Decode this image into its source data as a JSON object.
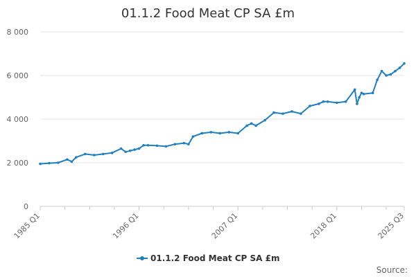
{
  "chart_data": {
    "type": "line",
    "title": "01.1.2 Food Meat CP SA £m",
    "xlabel": "",
    "ylabel": "",
    "ylim": [
      0,
      8000
    ],
    "yticks": [
      0,
      2000,
      4000,
      6000,
      8000
    ],
    "ytick_labels": [
      "0",
      "2 000",
      "4 000",
      "6 000",
      "8 000"
    ],
    "xlim": [
      1985.0,
      2025.5
    ],
    "xticks": [
      1985.0,
      1996.0,
      2007.0,
      2018.0,
      2025.5
    ],
    "xtick_labels": [
      "1985 Q1",
      "1996 Q1",
      "2007 Q1",
      "2018 Q1",
      "2025 Q3"
    ],
    "grid": true,
    "legend_position": "bottom-center",
    "series": [
      {
        "name": "01.1.2 Food Meat CP SA £m",
        "color": "#1f7fbf",
        "x": [
          1985.0,
          1986.0,
          1987.0,
          1988.0,
          1988.5,
          1989.0,
          1990.0,
          1991.0,
          1992.0,
          1993.0,
          1994.0,
          1994.5,
          1995.0,
          1995.5,
          1996.0,
          1996.5,
          1997.0,
          1998.0,
          1999.0,
          2000.0,
          2001.0,
          2001.5,
          2002.0,
          2003.0,
          2004.0,
          2005.0,
          2006.0,
          2007.0,
          2008.0,
          2008.5,
          2009.0,
          2010.0,
          2011.0,
          2012.0,
          2013.0,
          2014.0,
          2015.0,
          2016.0,
          2016.5,
          2017.0,
          2018.0,
          2019.0,
          2020.0,
          2020.25,
          2020.5,
          2020.75,
          2021.0,
          2022.0,
          2022.5,
          2023.0,
          2023.5,
          2024.0,
          2024.5,
          2025.0,
          2025.5
        ],
        "values": [
          1950,
          1980,
          2000,
          2150,
          2050,
          2250,
          2400,
          2350,
          2400,
          2450,
          2650,
          2500,
          2550,
          2600,
          2650,
          2800,
          2800,
          2780,
          2750,
          2850,
          2900,
          2850,
          3200,
          3350,
          3400,
          3350,
          3400,
          3350,
          3700,
          3800,
          3700,
          3950,
          4300,
          4250,
          4350,
          4250,
          4600,
          4700,
          4800,
          4800,
          4750,
          4800,
          5350,
          4700,
          5000,
          5200,
          5150,
          5200,
          5800,
          6200,
          6000,
          6050,
          6200,
          6350,
          6550
        ]
      }
    ]
  },
  "legend": {
    "label": "01.1.2 Food Meat CP SA £m"
  },
  "source": {
    "label": "Source:"
  }
}
